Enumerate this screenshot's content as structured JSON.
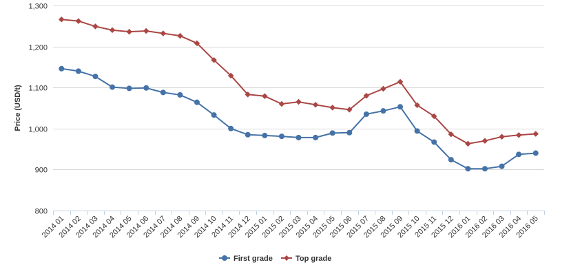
{
  "chart_data": {
    "type": "line",
    "title": "",
    "xlabel": "",
    "ylabel": "Price (USD/t)",
    "ylim": [
      800,
      1300
    ],
    "yticks": [
      "800",
      "900",
      "1,000",
      "1,100",
      "1,200",
      "1,300"
    ],
    "ytick_values": [
      800,
      900,
      1000,
      1100,
      1200,
      1300
    ],
    "grid": true,
    "legend": "bottom-center",
    "categories": [
      "2014 01",
      "2014 02",
      "2014 03",
      "2014 04",
      "2014 05",
      "2014 06",
      "2014 07",
      "2014 08",
      "2014 09",
      "2014 10",
      "2014 11",
      "2014 12",
      "2015 01",
      "2015 02",
      "2015 03",
      "2015 04",
      "2015 05",
      "2015 06",
      "2015 07",
      "2015 08",
      "2015 09",
      "2015 10",
      "2015 11",
      "2015 12",
      "2016 01",
      "2016 02",
      "2016 03",
      "2016 04",
      "2016 05"
    ],
    "series": [
      {
        "name": "First grade",
        "color": "#4572a7",
        "marker": "circle",
        "values": [
          1146,
          1140,
          1127,
          1101,
          1098,
          1099,
          1088,
          1082,
          1064,
          1033,
          1000,
          985,
          983,
          981,
          978,
          978,
          989,
          990,
          1035,
          1043,
          1053,
          994,
          967,
          924,
          902,
          902,
          908,
          937,
          940
        ]
      },
      {
        "name": "Top grade",
        "color": "#aa4643",
        "marker": "diamond",
        "values": [
          1266,
          1262,
          1249,
          1240,
          1236,
          1238,
          1232,
          1226,
          1208,
          1167,
          1129,
          1083,
          1079,
          1060,
          1065,
          1058,
          1051,
          1046,
          1080,
          1097,
          1114,
          1057,
          1030,
          986,
          963,
          970,
          980,
          984,
          987
        ]
      }
    ]
  }
}
